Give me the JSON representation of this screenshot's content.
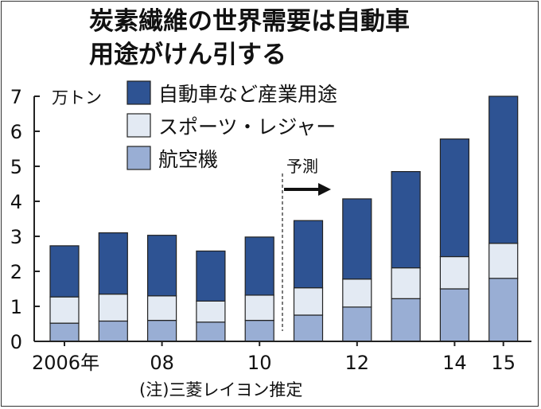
{
  "chart_data": {
    "type": "bar",
    "stacked": true,
    "title": "炭素繊維の世界需要は自動車",
    "title_line2": "用途がけん引する",
    "unit": "万トン",
    "note": "(注)三菱レイヨン推定",
    "forecast_label": "予測",
    "ylim": [
      0,
      7
    ],
    "yticks": [
      0,
      1,
      2,
      3,
      4,
      5,
      6,
      7
    ],
    "xticks": [
      {
        "index": 0,
        "label": "2006年"
      },
      {
        "index": 2,
        "label": "08"
      },
      {
        "index": 4,
        "label": "10"
      },
      {
        "index": 6,
        "label": "12"
      },
      {
        "index": 8,
        "label": "14"
      },
      {
        "index": 9,
        "label": "15"
      }
    ],
    "categories": [
      "2006",
      "2007",
      "2008",
      "2009",
      "2010",
      "2011",
      "2012",
      "2013",
      "2014",
      "2015"
    ],
    "series": [
      {
        "name": "航空機",
        "color": "#99aed4",
        "values": [
          0.52,
          0.58,
          0.6,
          0.55,
          0.6,
          0.75,
          0.98,
          1.22,
          1.5,
          1.8
        ]
      },
      {
        "name": "スポーツ・レジャー",
        "color": "#e3eaf3",
        "values": [
          0.75,
          0.77,
          0.7,
          0.6,
          0.72,
          0.78,
          0.8,
          0.88,
          0.92,
          1.0
        ]
      },
      {
        "name": "自動車など産業用途",
        "color": "#2e5393",
        "values": [
          1.46,
          1.75,
          1.73,
          1.43,
          1.66,
          1.92,
          2.29,
          2.75,
          3.36,
          4.2
        ]
      }
    ],
    "legend": [
      {
        "name": "自動車など産業用途",
        "color": "#2e5393"
      },
      {
        "name": "スポーツ・レジャー",
        "color": "#e3eaf3"
      },
      {
        "name": "航空機",
        "color": "#99aed4"
      }
    ]
  }
}
